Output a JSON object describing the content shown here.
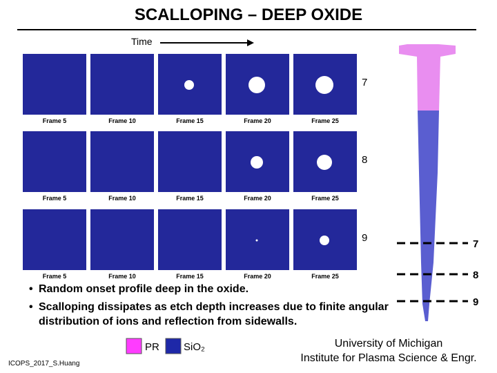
{
  "title": "SCALLOPING – DEEP OXIDE",
  "time_label": "Time",
  "rows": [
    {
      "label": "7",
      "frames": [
        "Frame 5",
        "Frame 10",
        "Frame 15",
        "Frame 20",
        "Frame 25"
      ]
    },
    {
      "label": "8",
      "frames": [
        "Frame 5",
        "Frame 10",
        "Frame 15",
        "Frame 20",
        "Frame 25"
      ]
    },
    {
      "label": "9",
      "frames": [
        "Frame 5",
        "Frame 10",
        "Frame 15",
        "Frame 20",
        "Frame 25"
      ]
    }
  ],
  "depth_markers": [
    "7",
    "8",
    "9"
  ],
  "bullets": [
    "Random onset profile deep in the oxide.",
    "Scalloping dissipates as etch depth increases due to finite angular distribution of ions and reflection from sidewalls."
  ],
  "legend": [
    "PR",
    "SiO₂"
  ],
  "footer": "ICOPS_2017_S.Huang",
  "affiliation": [
    "University of Michigan",
    "Institute for Plasma Science & Engr."
  ]
}
